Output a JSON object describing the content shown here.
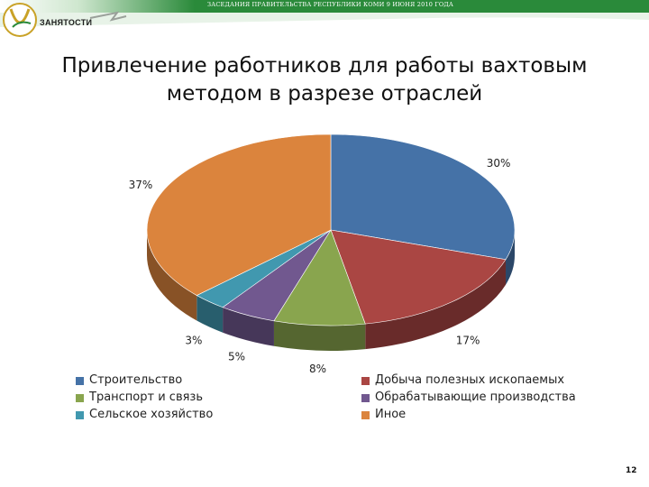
{
  "header": {
    "caption": "ЗАСЕДАНИЯ ПРАВИТЕЛЬСТВА РЕСПУБЛИКИ КОМИ 9 ИЮНЯ 2010 ГОДА",
    "logo_text": "ЗАНЯТОСТИ",
    "band_color": "#2a8a3a",
    "logo_color": "#c9a227"
  },
  "title": "Привлечение работников для работы вахтовым методом в разрезе отраслей",
  "chart_data": {
    "type": "pie",
    "title": "Привлечение работников для работы вахтовым методом в разрезе отраслей",
    "labels": [
      "Строительство",
      "Добыча полезных ископаемых",
      "Транспорт и связь",
      "Обрабатывающие производства",
      "Сельское хозяйство",
      "Иное"
    ],
    "values": [
      30,
      17,
      8,
      5,
      3,
      37
    ],
    "data_labels": [
      "30%",
      "17%",
      "8%",
      "5%",
      "3%",
      "37%"
    ],
    "colors": [
      "#4572a7",
      "#aa4643",
      "#89a54e",
      "#71588f",
      "#4198af",
      "#db843d"
    ],
    "style": "3d-tilted",
    "legend_position": "bottom"
  },
  "legend": {
    "items": [
      {
        "label": "Строительство",
        "color": "#4572a7"
      },
      {
        "label": "Добыча полезных ископаемых",
        "color": "#aa4643"
      },
      {
        "label": "Транспорт и связь",
        "color": "#89a54e"
      },
      {
        "label": "Обрабатывающие производства",
        "color": "#71588f"
      },
      {
        "label": "Сельское хозяйство",
        "color": "#4198af"
      },
      {
        "label": "Иное",
        "color": "#db843d"
      }
    ]
  },
  "page_number": "12"
}
